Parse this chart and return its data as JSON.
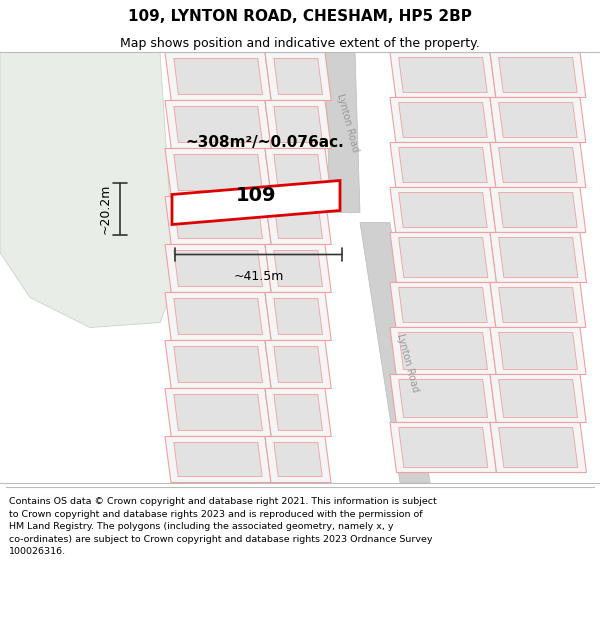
{
  "title": "109, LYNTON ROAD, CHESHAM, HP5 2BP",
  "subtitle": "Map shows position and indicative extent of the property.",
  "footer": "Contains OS data © Crown copyright and database right 2021. This information is subject\nto Crown copyright and database rights 2023 and is reproduced with the permission of\nHM Land Registry. The polygons (including the associated geometry, namely x, y\nco-ordinates) are subject to Crown copyright and database rights 2023 Ordnance Survey\n100026316.",
  "map_bg": "#f7f7f7",
  "green_color": "#e8ede8",
  "green_edge": "#c8d4c8",
  "road_fill": "#d0d0d0",
  "road_edge": "#bbbbbb",
  "cad_fill": "#f5f5f5",
  "cad_edge": "#f0a0a0",
  "cad_inner_fill": "#e2e2e2",
  "plot_edge": "#dd0000",
  "plot_fill": "#ffffff",
  "dim_color": "#333333",
  "road_text_color": "#999999",
  "area_text": "~308m²/~0.076ac.",
  "width_label": "~41.5m",
  "height_label": "~20.2m",
  "property_label": "109",
  "road_label": "Lynton Road",
  "title_fontsize": 11,
  "subtitle_fontsize": 9,
  "footer_fontsize": 6.8
}
